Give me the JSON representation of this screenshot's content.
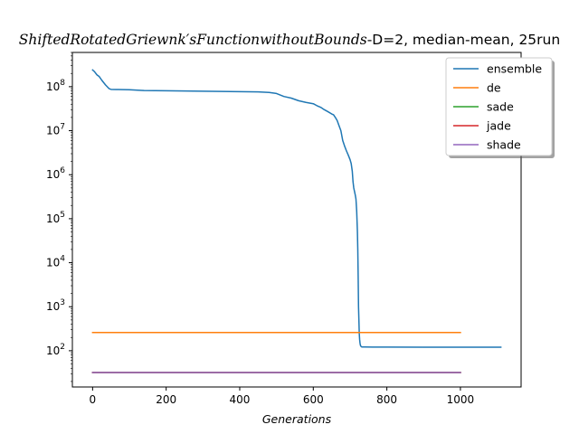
{
  "chart_data": {
    "type": "line",
    "title_italic": "ShiftedRotatedGriewnk′sFunctionwithoutBounds",
    "title_rest": "-D=2, median-mean, 25run",
    "xlabel": "Generations",
    "ylabel": "",
    "yscale": "log",
    "xlim": [
      -55,
      1165
    ],
    "ylim": [
      15,
      600000000
    ],
    "xticks": [
      0,
      200,
      400,
      600,
      800,
      1000
    ],
    "xtick_labels": [
      "0",
      "200",
      "400",
      "600",
      "800",
      "1000"
    ],
    "ytick_exponents": [
      2,
      3,
      4,
      5,
      6,
      7,
      8
    ],
    "ytick_base": "10",
    "legend_position": "upper-right",
    "grid": false,
    "series": [
      {
        "name": "ensemble",
        "color": "#1f77b4",
        "x": [
          0,
          5,
          12,
          18,
          25,
          35,
          45,
          50,
          70,
          100,
          140,
          200,
          300,
          400,
          450,
          480,
          500,
          520,
          540,
          560,
          580,
          600,
          610,
          620,
          630,
          640,
          650,
          655,
          660,
          665,
          670,
          675,
          680,
          685,
          690,
          695,
          700,
          703,
          706,
          708,
          710,
          712,
          714,
          716,
          718,
          720,
          721,
          722,
          723,
          724,
          725,
          726,
          727,
          728,
          729,
          730,
          731,
          732,
          733,
          734,
          735,
          740,
          760,
          800,
          900,
          1000,
          1100,
          1110
        ],
        "y": [
          240000000,
          220000000,
          185000000,
          170000000,
          140000000,
          110000000,
          90000000,
          87000000,
          86000000,
          85000000,
          82000000,
          81000000,
          79000000,
          77000000,
          76000000,
          74000000,
          70000000,
          60000000,
          55000000,
          48000000,
          44000000,
          41000000,
          37000000,
          34000000,
          30000000,
          27000000,
          24000000,
          23000000,
          20000000,
          17000000,
          13000000,
          10000000,
          6000000,
          4500000,
          3500000,
          2800000,
          2200000,
          1800000,
          1200000,
          700000,
          500000,
          420000,
          350000,
          280000,
          150000,
          50000,
          20000,
          5000,
          1000,
          500,
          250,
          180,
          150,
          135,
          128,
          125,
          123,
          122,
          122,
          122,
          122,
          122,
          121,
          121,
          120,
          120,
          120,
          120
        ]
      },
      {
        "name": "de",
        "color": "#ff7f0e",
        "x": [
          0,
          1000
        ],
        "y": [
          260,
          260
        ]
      },
      {
        "name": "sade",
        "color": "#2ca02c",
        "x": [
          0,
          1000
        ],
        "y": [
          32,
          32
        ]
      },
      {
        "name": "jade",
        "color": "#d62728",
        "x": [
          0,
          1000
        ],
        "y": [
          32,
          32
        ]
      },
      {
        "name": "shade",
        "color": "#9467bd",
        "x": [
          0,
          1000
        ],
        "y": [
          32,
          32
        ]
      }
    ]
  }
}
